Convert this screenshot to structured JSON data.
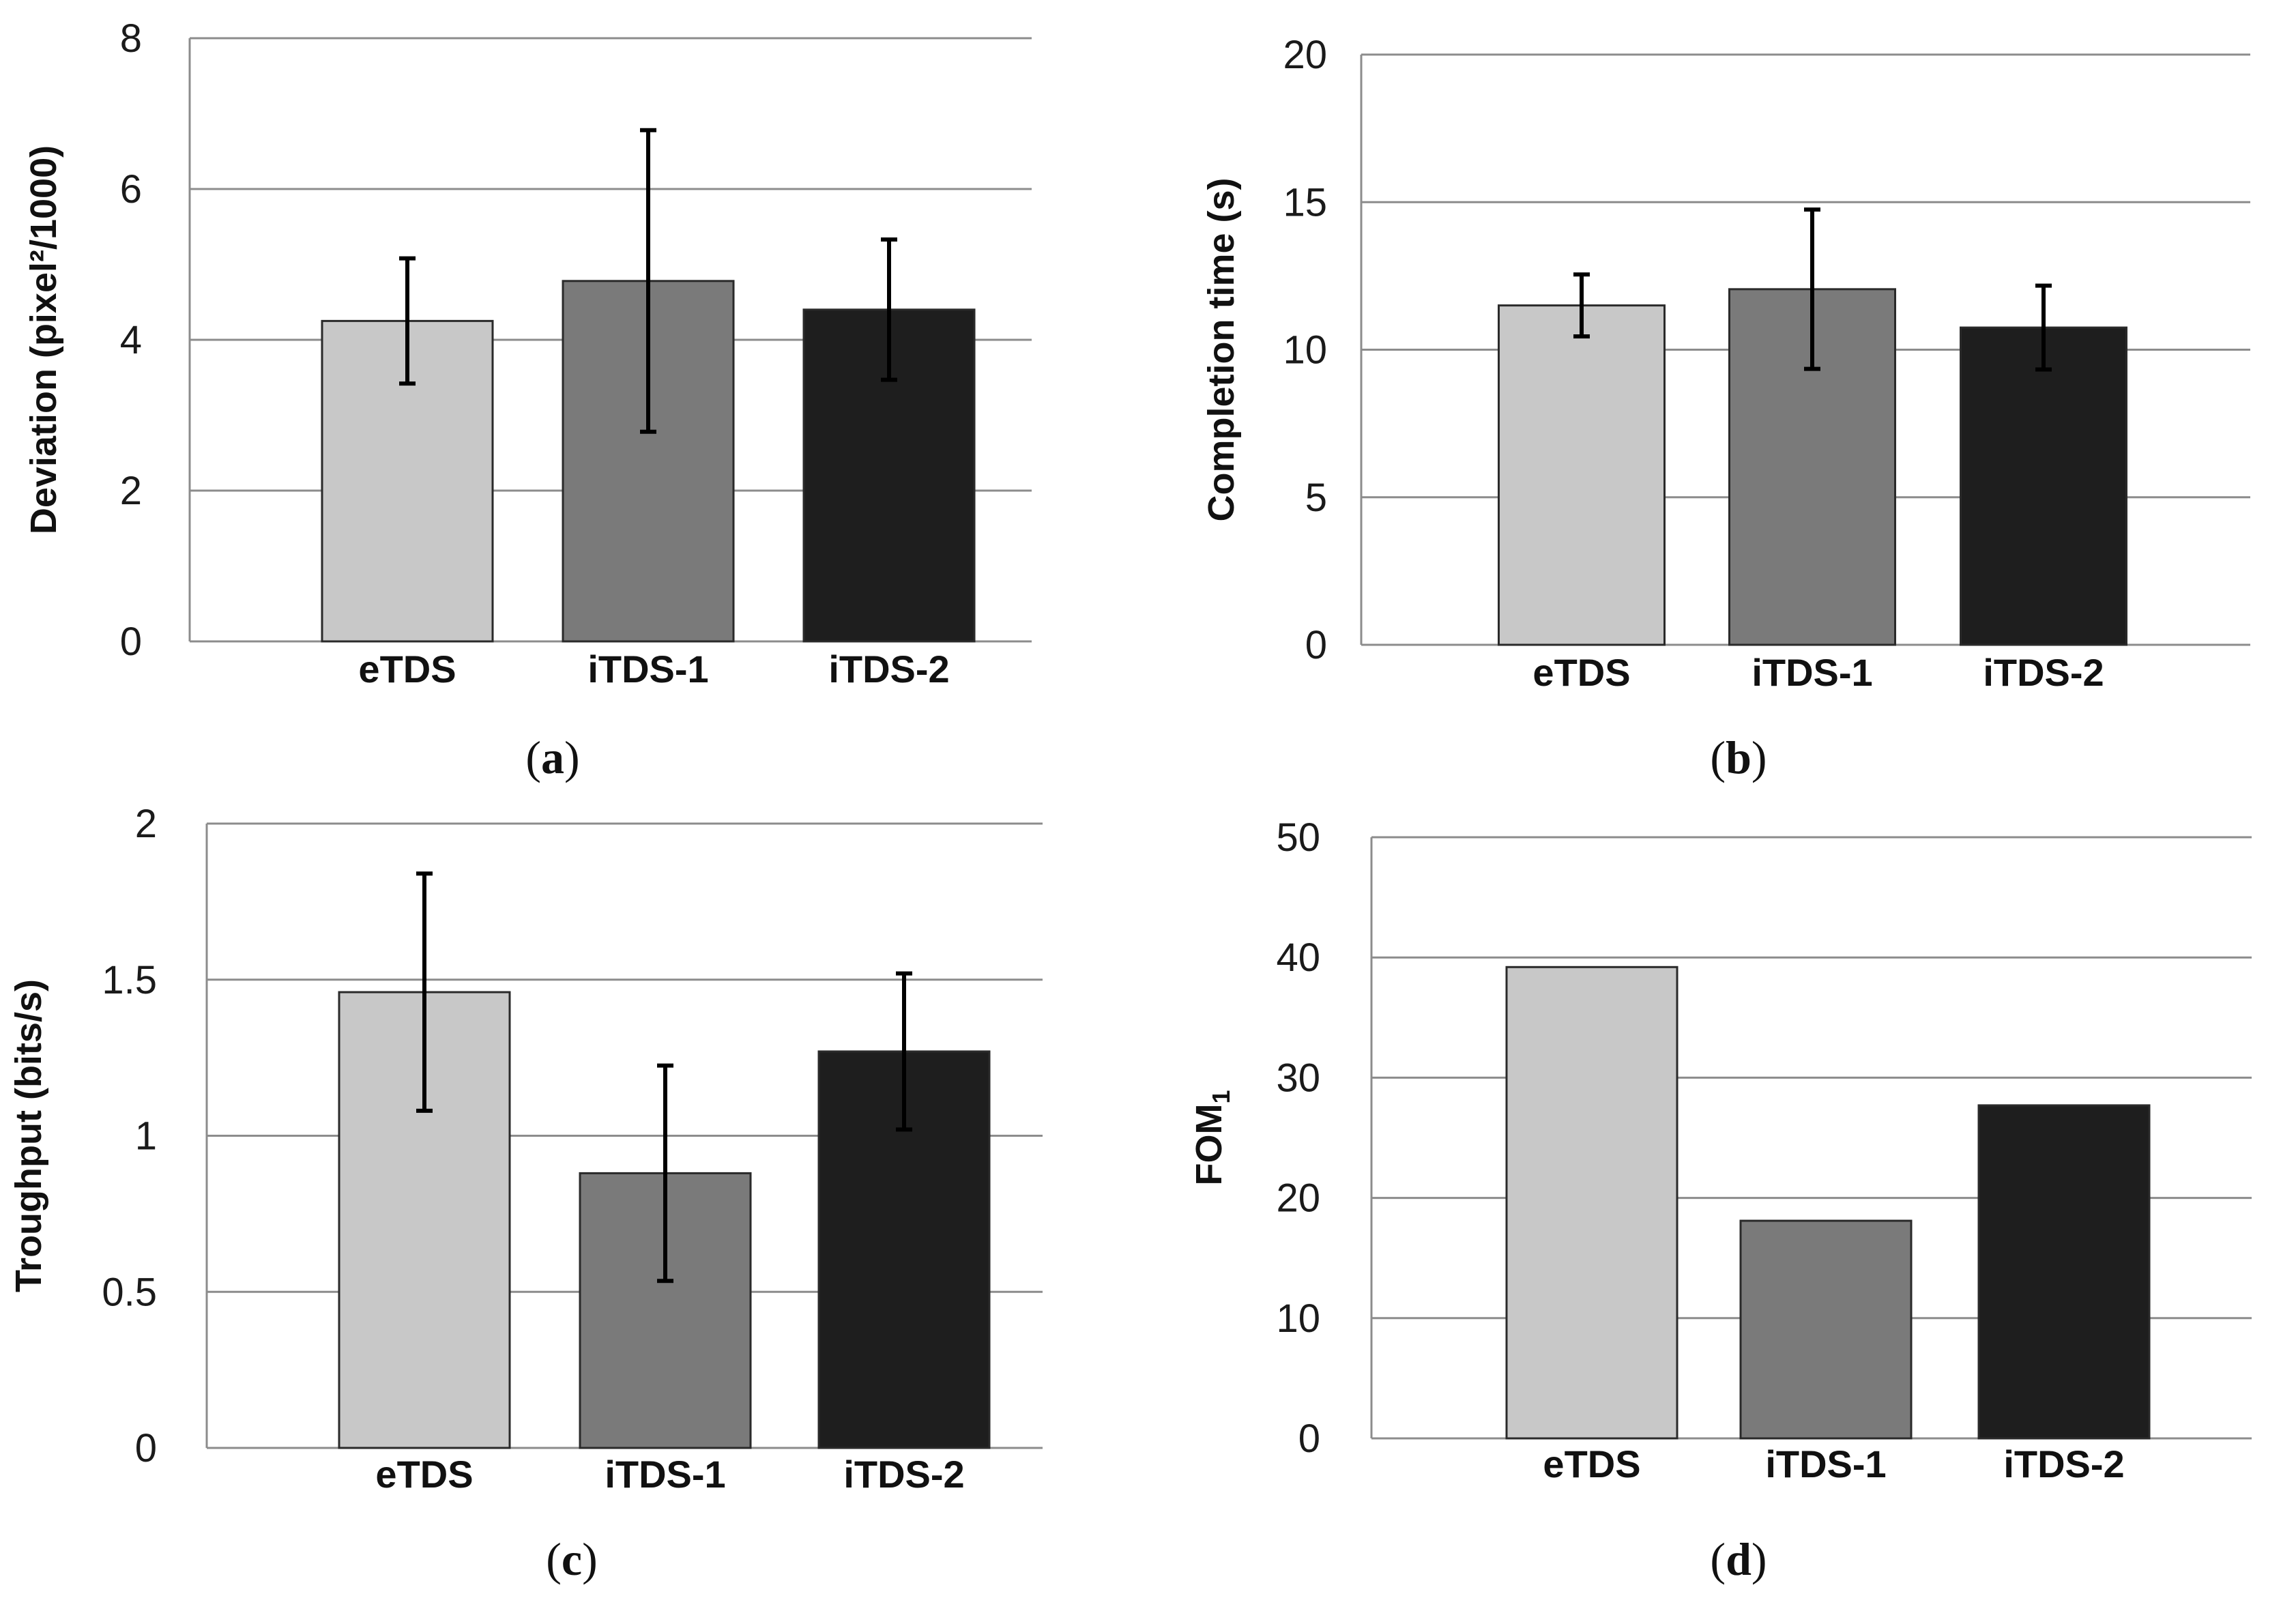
{
  "colors": {
    "eTDS": "#c8c8c8",
    "iTDS-1": "#7a7a7a",
    "iTDS-2": "#1e1e1e"
  },
  "chart_data": [
    {
      "type": "bar",
      "panel_label": "a",
      "categories": [
        "eTDS",
        "iTDS-1",
        "iTDS-2"
      ],
      "values": [
        4.25,
        4.78,
        4.4
      ],
      "error": [
        0.83,
        2.0,
        0.93
      ],
      "ylabel": "Deviation (pixel²/1000)",
      "ylim": [
        0,
        8
      ],
      "yticks": [
        "0",
        "2",
        "4",
        "6",
        "8"
      ],
      "grid": true
    },
    {
      "type": "bar",
      "panel_label": "b",
      "categories": [
        "eTDS",
        "iTDS-1",
        "iTDS-2"
      ],
      "values": [
        11.5,
        12.05,
        10.75
      ],
      "error": [
        1.05,
        2.7,
        1.42
      ],
      "ylabel": "Completion time (s)",
      "ylim": [
        0,
        20
      ],
      "yticks": [
        "0",
        "5",
        "10",
        "15",
        "20"
      ],
      "grid": true
    },
    {
      "type": "bar",
      "panel_label": "c",
      "categories": [
        "eTDS",
        "iTDS-1",
        "iTDS-2"
      ],
      "values": [
        1.46,
        0.88,
        1.27
      ],
      "error": [
        0.38,
        0.345,
        0.25
      ],
      "ylabel": "Troughput (bits/s)",
      "ylim": [
        0,
        2
      ],
      "yticks": [
        "0",
        "0.5",
        "1",
        "1.5",
        "2"
      ],
      "grid": true
    },
    {
      "type": "bar",
      "panel_label": "d",
      "categories": [
        "eTDS",
        "iTDS-1",
        "iTDS-2"
      ],
      "values": [
        39.2,
        18.1,
        27.7
      ],
      "ylabel": "FOM",
      "ylabel_subscript": "1",
      "ylim": [
        0,
        50
      ],
      "yticks": [
        "0",
        "10",
        "20",
        "30",
        "40",
        "50"
      ],
      "grid": true
    }
  ]
}
